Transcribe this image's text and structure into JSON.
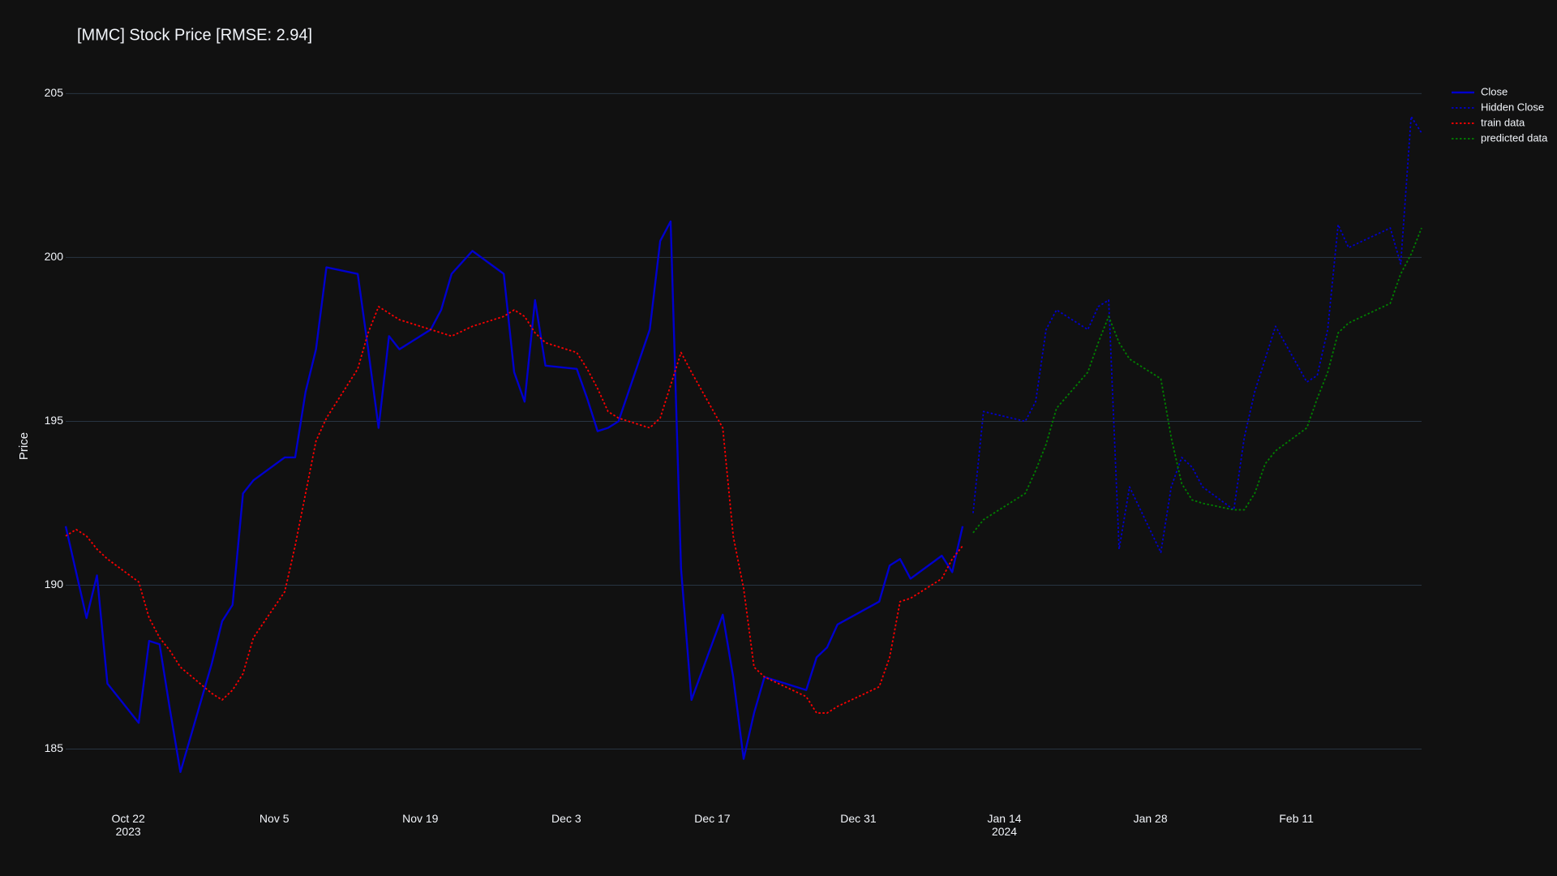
{
  "chart_data": {
    "type": "line",
    "title": "[MMC] Stock Price [RMSE: 2.94]",
    "y_label": "Price",
    "x": [
      "2023-10-16",
      "2023-10-17",
      "2023-10-18",
      "2023-10-19",
      "2023-10-20",
      "2023-10-23",
      "2023-10-24",
      "2023-10-25",
      "2023-10-26",
      "2023-10-27",
      "2023-10-30",
      "2023-10-31",
      "2023-11-01",
      "2023-11-02",
      "2023-11-03",
      "2023-11-06",
      "2023-11-07",
      "2023-11-08",
      "2023-11-09",
      "2023-11-10",
      "2023-11-13",
      "2023-11-14",
      "2023-11-15",
      "2023-11-16",
      "2023-11-17",
      "2023-11-20",
      "2023-11-21",
      "2023-11-22",
      "2023-11-24",
      "2023-11-27",
      "2023-11-28",
      "2023-11-29",
      "2023-11-30",
      "2023-12-01",
      "2023-12-04",
      "2023-12-05",
      "2023-12-06",
      "2023-12-07",
      "2023-12-08",
      "2023-12-11",
      "2023-12-12",
      "2023-12-13",
      "2023-12-14",
      "2023-12-15",
      "2023-12-18",
      "2023-12-19",
      "2023-12-20",
      "2023-12-21",
      "2023-12-22",
      "2023-12-26",
      "2023-12-27",
      "2023-12-28",
      "2023-12-29",
      "2024-01-02",
      "2024-01-03",
      "2024-01-04",
      "2024-01-05",
      "2024-01-08",
      "2024-01-09",
      "2024-01-10",
      "2024-01-11",
      "2024-01-12",
      "2024-01-16",
      "2024-01-17",
      "2024-01-18",
      "2024-01-19",
      "2024-01-22",
      "2024-01-23",
      "2024-01-24",
      "2024-01-25",
      "2024-01-26",
      "2024-01-29",
      "2024-01-30",
      "2024-01-31",
      "2024-02-01",
      "2024-02-02",
      "2024-02-05",
      "2024-02-06",
      "2024-02-07",
      "2024-02-08",
      "2024-02-09",
      "2024-02-12",
      "2024-02-13",
      "2024-02-14",
      "2024-02-15",
      "2024-02-16",
      "2024-02-20",
      "2024-02-21",
      "2024-02-22",
      "2024-02-23"
    ],
    "series": [
      {
        "name": "Close",
        "color": "#0000cd",
        "dash": "solid",
        "width": 2.4,
        "values": [
          191.8,
          190.4,
          189.0,
          190.3,
          187.0,
          185.8,
          188.3,
          188.2,
          186.2,
          184.3,
          187.6,
          188.9,
          189.4,
          192.8,
          193.2,
          193.9,
          193.9,
          195.9,
          197.2,
          199.7,
          199.5,
          197.2,
          194.8,
          197.6,
          197.2,
          197.8,
          198.4,
          199.5,
          200.2,
          199.5,
          196.5,
          195.6,
          198.7,
          196.7,
          196.6,
          195.7,
          194.7,
          194.8,
          195.0,
          197.8,
          200.5,
          201.1,
          190.5,
          186.5,
          189.1,
          187.2,
          184.7,
          186.1,
          187.2,
          186.8,
          187.8,
          188.1,
          188.8,
          189.5,
          190.6,
          190.8,
          190.2,
          190.9,
          190.4,
          191.8,
          null,
          null,
          null,
          null,
          null,
          null,
          null,
          null,
          null,
          null,
          null,
          null,
          null,
          null,
          null,
          null,
          null,
          null,
          null,
          null,
          null,
          null,
          null,
          null,
          null,
          null,
          null,
          null,
          null,
          null
        ]
      },
      {
        "name": "Hidden Close",
        "color": "#0000cd",
        "dash": "dot",
        "width": 1.8,
        "values": [
          null,
          null,
          null,
          null,
          null,
          null,
          null,
          null,
          null,
          null,
          null,
          null,
          null,
          null,
          null,
          null,
          null,
          null,
          null,
          null,
          null,
          null,
          null,
          null,
          null,
          null,
          null,
          null,
          null,
          null,
          null,
          null,
          null,
          null,
          null,
          null,
          null,
          null,
          null,
          null,
          null,
          null,
          null,
          null,
          null,
          null,
          null,
          null,
          null,
          null,
          null,
          null,
          null,
          null,
          null,
          null,
          null,
          null,
          null,
          null,
          192.2,
          195.3,
          195.0,
          195.6,
          197.8,
          198.4,
          197.8,
          198.5,
          198.7,
          191.1,
          193.0,
          191.0,
          193.0,
          193.9,
          193.6,
          193.0,
          192.3,
          194.5,
          195.9,
          196.9,
          197.9,
          196.2,
          196.4,
          197.8,
          201.0,
          200.3,
          200.9,
          199.8,
          204.3,
          203.8
        ]
      },
      {
        "name": "train data",
        "color": "#ff0000",
        "dash": "dot",
        "width": 1.8,
        "values": [
          191.5,
          191.7,
          191.5,
          191.1,
          190.8,
          190.1,
          189.0,
          188.4,
          188.0,
          187.5,
          186.7,
          186.5,
          186.8,
          187.3,
          188.4,
          189.8,
          191.2,
          192.8,
          194.4,
          195.1,
          196.6,
          197.7,
          198.5,
          198.3,
          198.1,
          197.8,
          197.7,
          197.6,
          197.9,
          198.2,
          198.4,
          198.2,
          197.7,
          197.4,
          197.1,
          196.6,
          196.0,
          195.3,
          195.1,
          194.8,
          195.1,
          196.1,
          197.1,
          196.5,
          194.8,
          191.5,
          189.9,
          187.5,
          187.2,
          186.6,
          186.1,
          186.1,
          186.3,
          186.9,
          187.8,
          189.5,
          189.6,
          190.2,
          190.8,
          191.2,
          null,
          null,
          null,
          null,
          null,
          null,
          null,
          null,
          null,
          null,
          null,
          null,
          null,
          null,
          null,
          null,
          null,
          null,
          null,
          null,
          null,
          null,
          null,
          null,
          null,
          null,
          null,
          null,
          null,
          null
        ]
      },
      {
        "name": "predicted data",
        "color": "#008000",
        "dash": "dot",
        "width": 1.8,
        "values": [
          null,
          null,
          null,
          null,
          null,
          null,
          null,
          null,
          null,
          null,
          null,
          null,
          null,
          null,
          null,
          null,
          null,
          null,
          null,
          null,
          null,
          null,
          null,
          null,
          null,
          null,
          null,
          null,
          null,
          null,
          null,
          null,
          null,
          null,
          null,
          null,
          null,
          null,
          null,
          null,
          null,
          null,
          null,
          null,
          null,
          null,
          null,
          null,
          null,
          null,
          null,
          null,
          null,
          null,
          null,
          null,
          null,
          null,
          null,
          null,
          191.6,
          192.0,
          192.8,
          193.5,
          194.3,
          195.4,
          196.5,
          197.4,
          198.2,
          197.4,
          196.9,
          196.3,
          194.5,
          193.1,
          192.6,
          192.5,
          192.3,
          192.3,
          192.8,
          193.7,
          194.1,
          194.8,
          195.7,
          196.5,
          197.7,
          198.0,
          198.6,
          199.5,
          200.1,
          200.9
        ]
      }
    ],
    "xlim": [
      "2023-10-16",
      "2024-02-23"
    ],
    "xticks": [
      {
        "value": "2023-10-22",
        "label": "Oct 22\n2023"
      },
      {
        "value": "2023-11-05",
        "label": "Nov 5"
      },
      {
        "value": "2023-11-19",
        "label": "Nov 19"
      },
      {
        "value": "2023-12-03",
        "label": "Dec 3"
      },
      {
        "value": "2023-12-17",
        "label": "Dec 17"
      },
      {
        "value": "2023-12-31",
        "label": "Dec 31"
      },
      {
        "value": "2024-01-14",
        "label": "Jan 14\n2024"
      },
      {
        "value": "2024-01-28",
        "label": "Jan 28"
      },
      {
        "value": "2024-02-11",
        "label": "Feb 11"
      }
    ],
    "ylim": [
      183.8,
      206
    ],
    "yticks": [
      185,
      190,
      195,
      200,
      205
    ],
    "grid": true,
    "legend": "outside-top-right"
  }
}
